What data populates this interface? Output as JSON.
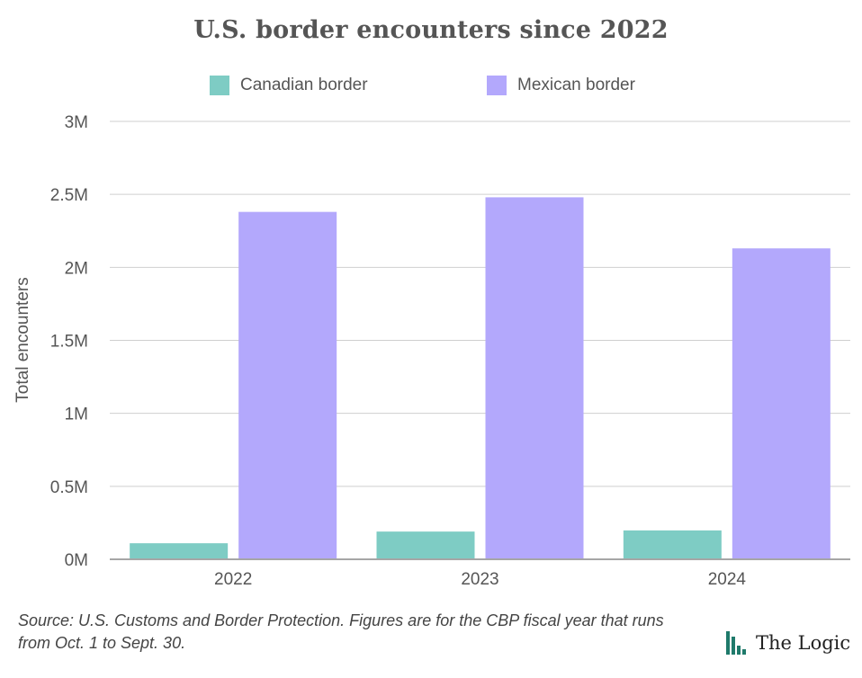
{
  "chart_data": {
    "type": "bar",
    "title": "U.S. border encounters since 2022",
    "categories": [
      "2022",
      "2023",
      "2024"
    ],
    "series": [
      {
        "name": "Canadian border",
        "color": "#7ECCC4",
        "values": [
          110000,
          190000,
          198000
        ]
      },
      {
        "name": "Mexican border",
        "color": "#B3A8FC",
        "values": [
          2380000,
          2480000,
          2130000
        ]
      }
    ],
    "ylabel": "Total encounters",
    "xlabel": "",
    "ylim": [
      0,
      3000000
    ],
    "yticks": [
      0,
      500000,
      1000000,
      1500000,
      2000000,
      2500000,
      3000000
    ],
    "ytick_labels": [
      "0M",
      "0.5M",
      "1M",
      "1.5M",
      "2M",
      "2.5M",
      "3M"
    ],
    "grid": true,
    "legend_position": "top"
  },
  "source_note": "Source: U.S. Customs and Border Protection. Figures are for the CBP fiscal year that runs from Oct. 1 to Sept. 30.",
  "logo": {
    "text": "The Logic",
    "icon": "bar-logo-icon",
    "color": "#1f7a6b"
  }
}
